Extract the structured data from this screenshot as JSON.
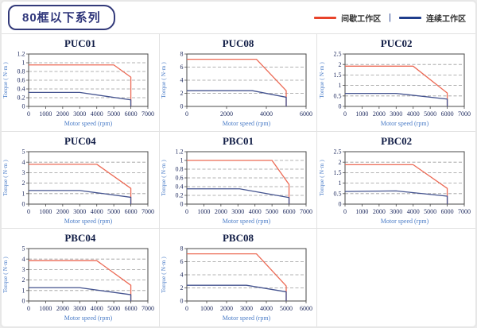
{
  "header": {
    "series_title": "80框以下系列"
  },
  "legend": {
    "intermittent_label": "间歇工作区",
    "continuous_label": "连续工作区",
    "separator": "|",
    "intermittent_color": "#e8432a",
    "continuous_color": "#1f3d8c"
  },
  "colors": {
    "chart_red": "#ec6a55",
    "chart_blue": "#44538f",
    "grid_gray": "#9a9a9a",
    "axis_dark": "#4a4a4a",
    "tick_text": "#1e2a5e",
    "axis_label_blue": "#4a7cc7",
    "header_navy": "#2e357a",
    "cell_border": "#e2e2e2"
  },
  "chart_data": [
    {
      "type": "line",
      "title": "PUC01",
      "xlabel": "Motor speed (rpm)",
      "ylabel": "Torque ( N·m )",
      "xlim": [
        0,
        7000
      ],
      "ylim": [
        0,
        1.2
      ],
      "xticks": [
        0,
        1000,
        2000,
        3000,
        4000,
        5000,
        6000,
        7000
      ],
      "yticks": [
        0,
        0.2,
        0.4,
        0.6,
        0.8,
        1,
        1.2
      ],
      "grid": "dashed-horizontal",
      "legend_position": "none",
      "series": [
        {
          "name": "间歇工作区",
          "color": "#ec6a55",
          "points": [
            [
              0,
              0.95
            ],
            [
              5000,
              0.95
            ],
            [
              6000,
              0.67
            ],
            [
              6000,
              0
            ]
          ]
        },
        {
          "name": "连续工作区",
          "color": "#44538f",
          "points": [
            [
              0,
              0.32
            ],
            [
              3000,
              0.32
            ],
            [
              6000,
              0.15
            ],
            [
              6000,
              0
            ]
          ]
        }
      ]
    },
    {
      "type": "line",
      "title": "PUC08",
      "xlabel": "Motor speed (rpm)",
      "ylabel": "Torque ( N·m )",
      "xlim": [
        0,
        6000
      ],
      "ylim": [
        0,
        8
      ],
      "xticks": [
        0,
        2000,
        4000,
        6000
      ],
      "yticks": [
        0,
        2,
        4,
        6,
        8
      ],
      "grid": "dashed-horizontal",
      "legend_position": "none",
      "series": [
        {
          "name": "间歇工作区",
          "color": "#ec6a55",
          "points": [
            [
              0,
              7.2
            ],
            [
              3500,
              7.2
            ],
            [
              5000,
              2.4
            ],
            [
              5000,
              0
            ]
          ]
        },
        {
          "name": "连续工作区",
          "color": "#44538f",
          "points": [
            [
              0,
              2.4
            ],
            [
              3300,
              2.4
            ],
            [
              5000,
              1.4
            ],
            [
              5000,
              0
            ]
          ]
        }
      ]
    },
    {
      "type": "line",
      "title": "PUC02",
      "xlabel": "Motor speed (rpm)",
      "ylabel": "Torque ( N·m )",
      "xlim": [
        0,
        7000
      ],
      "ylim": [
        0,
        2.5
      ],
      "xticks": [
        0,
        1000,
        2000,
        3000,
        4000,
        5000,
        6000,
        7000
      ],
      "yticks": [
        0,
        0.5,
        1,
        1.5,
        2,
        2.5
      ],
      "grid": "dashed-horizontal",
      "legend_position": "none",
      "series": [
        {
          "name": "间歇工作区",
          "color": "#ec6a55",
          "points": [
            [
              0,
              1.92
            ],
            [
              4000,
              1.92
            ],
            [
              6000,
              0.64
            ],
            [
              6000,
              0
            ]
          ]
        },
        {
          "name": "连续工作区",
          "color": "#44538f",
          "points": [
            [
              0,
              0.62
            ],
            [
              3000,
              0.62
            ],
            [
              6000,
              0.35
            ],
            [
              6000,
              0
            ]
          ]
        }
      ]
    },
    {
      "type": "line",
      "title": "PUC04",
      "xlabel": "Motor speed (rpm)",
      "ylabel": "Torque ( N·m )",
      "xlim": [
        0,
        7000
      ],
      "ylim": [
        0,
        5
      ],
      "xticks": [
        0,
        1000,
        2000,
        3000,
        4000,
        5000,
        6000,
        7000
      ],
      "yticks": [
        0,
        1,
        2,
        3,
        4,
        5
      ],
      "grid": "dashed-horizontal",
      "legend_position": "none",
      "series": [
        {
          "name": "间歇工作区",
          "color": "#ec6a55",
          "points": [
            [
              0,
              3.8
            ],
            [
              4000,
              3.8
            ],
            [
              6000,
              1.5
            ],
            [
              6000,
              0
            ]
          ]
        },
        {
          "name": "连续工作区",
          "color": "#44538f",
          "points": [
            [
              0,
              1.3
            ],
            [
              3000,
              1.3
            ],
            [
              6000,
              0.65
            ],
            [
              6000,
              0
            ]
          ]
        }
      ]
    },
    {
      "type": "line",
      "title": "PBC01",
      "xlabel": "Motor speed (rpm)",
      "ylabel": "Torque ( N·m )",
      "xlim": [
        0,
        7000
      ],
      "ylim": [
        0,
        1.2
      ],
      "xticks": [
        0,
        1000,
        2000,
        3000,
        4000,
        5000,
        6000,
        7000
      ],
      "yticks": [
        0,
        0.2,
        0.4,
        0.6,
        0.8,
        1,
        1.2
      ],
      "grid": "dashed-horizontal",
      "legend_position": "none",
      "series": [
        {
          "name": "间歇工作区",
          "color": "#ec6a55",
          "points": [
            [
              0,
              1.0
            ],
            [
              5000,
              1.0
            ],
            [
              6000,
              0.45
            ],
            [
              6000,
              0
            ]
          ]
        },
        {
          "name": "连续工作区",
          "color": "#44538f",
          "points": [
            [
              0,
              0.35
            ],
            [
              3100,
              0.35
            ],
            [
              6000,
              0.15
            ],
            [
              6000,
              0
            ]
          ]
        }
      ]
    },
    {
      "type": "line",
      "title": "PBC02",
      "xlabel": "Motor speed (rpm)",
      "ylabel": "Torque ( N·m )",
      "xlim": [
        0,
        7000
      ],
      "ylim": [
        0,
        2.5
      ],
      "xticks": [
        0,
        1000,
        2000,
        3000,
        4000,
        5000,
        6000,
        7000
      ],
      "yticks": [
        0,
        0.5,
        1,
        1.5,
        2,
        2.5
      ],
      "grid": "dashed-horizontal",
      "legend_position": "none",
      "series": [
        {
          "name": "间歇工作区",
          "color": "#ec6a55",
          "points": [
            [
              0,
              1.88
            ],
            [
              4000,
              1.88
            ],
            [
              6000,
              0.75
            ],
            [
              6000,
              0
            ]
          ]
        },
        {
          "name": "连续工作区",
          "color": "#44538f",
          "points": [
            [
              0,
              0.6
            ],
            [
              3000,
              0.63
            ],
            [
              6000,
              0.38
            ],
            [
              6000,
              0
            ]
          ]
        }
      ]
    },
    {
      "type": "line",
      "title": "PBC04",
      "xlabel": "Motor speed (rpm)",
      "ylabel": "Torque ( N·m )",
      "xlim": [
        0,
        7000
      ],
      "ylim": [
        0,
        5
      ],
      "xticks": [
        0,
        1000,
        2000,
        3000,
        4000,
        5000,
        6000,
        7000
      ],
      "yticks": [
        0,
        1,
        2,
        3,
        4,
        5
      ],
      "grid": "dashed-horizontal",
      "legend_position": "none",
      "series": [
        {
          "name": "间歇工作区",
          "color": "#ec6a55",
          "points": [
            [
              0,
              3.85
            ],
            [
              4000,
              3.85
            ],
            [
              6000,
              1.5
            ],
            [
              6000,
              0
            ]
          ]
        },
        {
          "name": "连续工作区",
          "color": "#44538f",
          "points": [
            [
              0,
              1.27
            ],
            [
              3000,
              1.27
            ],
            [
              6000,
              0.6
            ],
            [
              6000,
              0
            ]
          ]
        }
      ]
    },
    {
      "type": "line",
      "title": "PBC08",
      "xlabel": "Motor speed (rpm)",
      "ylabel": "Torque ( N·m )",
      "xlim": [
        0,
        6000
      ],
      "ylim": [
        0,
        8
      ],
      "xticks": [
        0,
        1000,
        2000,
        3000,
        4000,
        5000,
        6000
      ],
      "yticks": [
        0,
        2,
        4,
        6,
        8
      ],
      "grid": "dashed-horizontal",
      "legend_position": "none",
      "series": [
        {
          "name": "间歇工作区",
          "color": "#ec6a55",
          "points": [
            [
              0,
              7.2
            ],
            [
              3500,
              7.2
            ],
            [
              5000,
              2.3
            ],
            [
              5000,
              0
            ]
          ]
        },
        {
          "name": "连续工作区",
          "color": "#44538f",
          "points": [
            [
              0,
              2.4
            ],
            [
              3000,
              2.4
            ],
            [
              5000,
              1.4
            ],
            [
              5000,
              0
            ]
          ]
        }
      ]
    }
  ]
}
